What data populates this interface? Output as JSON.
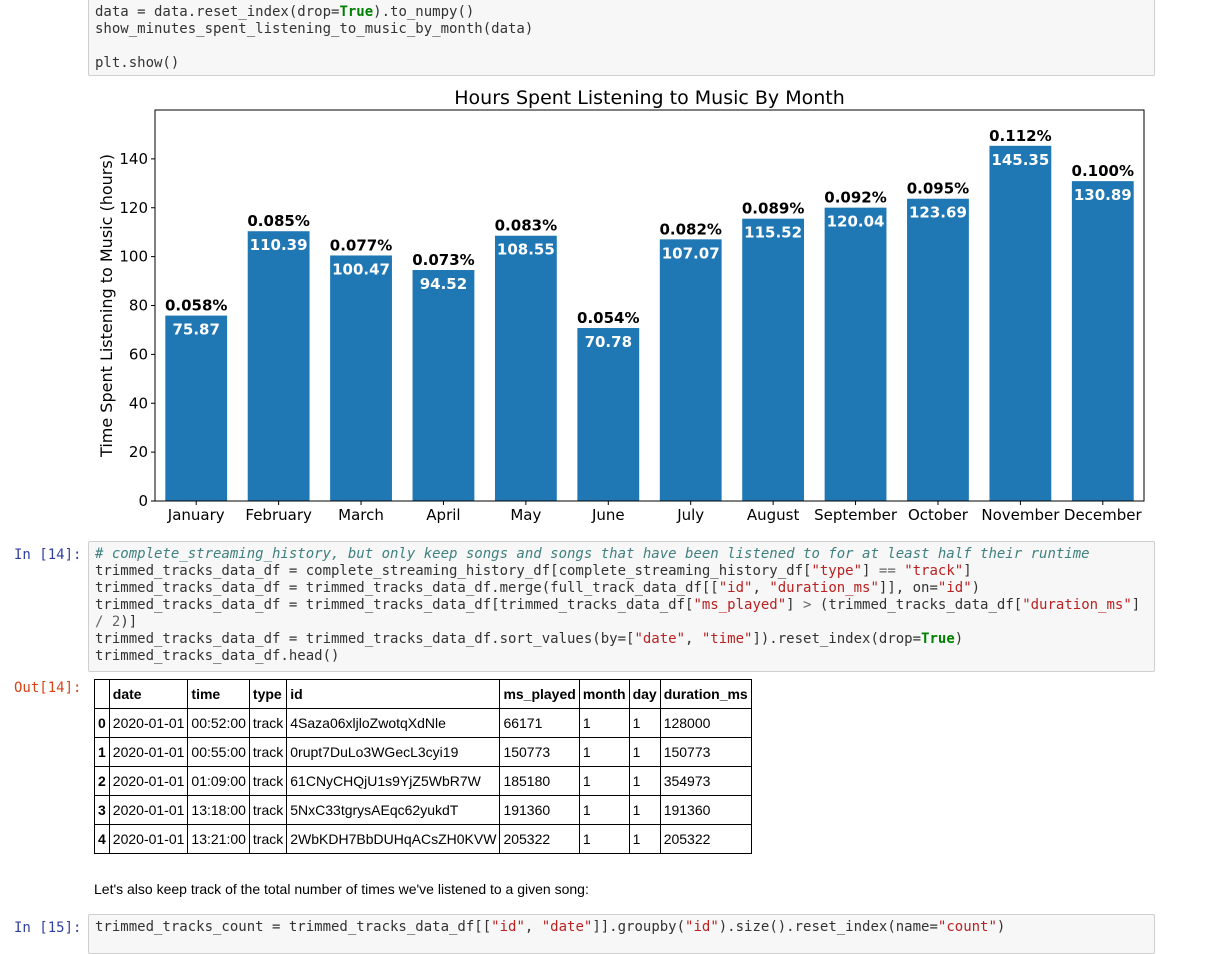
{
  "cell13": {
    "lines": [
      [
        [
          "code",
          "data = data.reset_index(drop="
        ],
        [
          "kw",
          "True"
        ],
        [
          "code",
          ").to_numpy()"
        ]
      ],
      [
        [
          "code",
          "show_minutes_spent_listening_to_music_by_month(data)"
        ]
      ],
      [
        [
          "code",
          ""
        ]
      ],
      [
        [
          "code",
          "plt.show()"
        ]
      ]
    ]
  },
  "chart_data": {
    "type": "bar",
    "title": "Hours Spent Listening to Music By Month",
    "ylabel": "Time Spent Listening to Music (hours)",
    "xlabel": "",
    "categories": [
      "January",
      "February",
      "March",
      "April",
      "May",
      "June",
      "July",
      "August",
      "September",
      "October",
      "November",
      "December"
    ],
    "values": [
      75.87,
      110.39,
      100.47,
      94.52,
      108.55,
      70.78,
      107.07,
      115.52,
      120.04,
      123.69,
      145.35,
      130.89
    ],
    "value_labels": [
      "75.87",
      "110.39",
      "100.47",
      "94.52",
      "108.55",
      "70.78",
      "107.07",
      "115.52",
      "120.04",
      "123.69",
      "145.35",
      "130.89"
    ],
    "percent_labels": [
      "0.058%",
      "0.085%",
      "0.077%",
      "0.073%",
      "0.083%",
      "0.054%",
      "0.082%",
      "0.089%",
      "0.092%",
      "0.095%",
      "0.112%",
      "0.100%"
    ],
    "ylim": [
      0,
      160
    ],
    "yticks": [
      0,
      20,
      40,
      60,
      80,
      100,
      120,
      140
    ],
    "bar_color": "#1f77b4",
    "grid": false,
    "legend": "none"
  },
  "cell14": {
    "in_prompt": "In [14]:",
    "out_prompt": "Out[14]:",
    "lines": [
      [
        [
          "cm",
          "# complete_streaming_history, but only keep songs and songs that have been listened to for at least half their runtime"
        ]
      ],
      [
        [
          "code",
          "trimmed_tracks_data_df = complete_streaming_history_df[complete_streaming_history_df["
        ],
        [
          "str",
          "\"type\""
        ],
        [
          "code",
          "] "
        ],
        [
          "op",
          "=="
        ],
        [
          "code",
          " "
        ],
        [
          "str",
          "\"track\""
        ],
        [
          "code",
          "]"
        ]
      ],
      [
        [
          "code",
          "trimmed_tracks_data_df = trimmed_tracks_data_df.merge(full_track_data_df[["
        ],
        [
          "str",
          "\"id\""
        ],
        [
          "code",
          ", "
        ],
        [
          "str",
          "\"duration_ms\""
        ],
        [
          "code",
          "]], on="
        ],
        [
          "str",
          "\"id\""
        ],
        [
          "code",
          ")"
        ]
      ],
      [
        [
          "code",
          "trimmed_tracks_data_df = trimmed_tracks_data_df[trimmed_tracks_data_df["
        ],
        [
          "str",
          "\"ms_played\""
        ],
        [
          "code",
          "] "
        ],
        [
          "op",
          ">"
        ],
        [
          "code",
          " (trimmed_tracks_data_df["
        ],
        [
          "str",
          "\"duration_ms\""
        ],
        [
          "code",
          "]"
        ]
      ],
      [
        [
          "op",
          "/"
        ],
        [
          "code",
          " "
        ],
        [
          "num",
          "2"
        ],
        [
          "code",
          ")]"
        ]
      ],
      [
        [
          "code",
          "trimmed_tracks_data_df = trimmed_tracks_data_df.sort_values(by=["
        ],
        [
          "str",
          "\"date\""
        ],
        [
          "code",
          ", "
        ],
        [
          "str",
          "\"time\""
        ],
        [
          "code",
          "]).reset_index(drop="
        ],
        [
          "kw",
          "True"
        ],
        [
          "code",
          ")"
        ]
      ],
      [
        [
          "code",
          "trimmed_tracks_data_df.head()"
        ]
      ]
    ]
  },
  "table": {
    "columns": [
      "",
      "date",
      "time",
      "type",
      "id",
      "ms_played",
      "month",
      "day",
      "duration_ms"
    ],
    "rows": [
      [
        "0",
        "2020-01-01",
        "00:52:00",
        "track",
        "4Saza06xljloZwotqXdNle",
        "66171",
        "1",
        "1",
        "128000"
      ],
      [
        "1",
        "2020-01-01",
        "00:55:00",
        "track",
        "0rupt7DuLo3WGecL3cyi19",
        "150773",
        "1",
        "1",
        "150773"
      ],
      [
        "2",
        "2020-01-01",
        "01:09:00",
        "track",
        "61CNyCHQjU1s9YjZ5WbR7W",
        "185180",
        "1",
        "1",
        "354973"
      ],
      [
        "3",
        "2020-01-01",
        "13:18:00",
        "track",
        "5NxC33tgrysAEqc62yukdT",
        "191360",
        "1",
        "1",
        "191360"
      ],
      [
        "4",
        "2020-01-01",
        "13:21:00",
        "track",
        "2WbKDH7BbDUHqACsZH0KVW",
        "205322",
        "1",
        "1",
        "205322"
      ]
    ]
  },
  "markdown": {
    "text": "Let's also keep track of the total number of times we've listened to a given song:"
  },
  "cell15": {
    "in_prompt": "In [15]:",
    "lines": [
      [
        [
          "code",
          "trimmed_tracks_count = trimmed_tracks_data_df[["
        ],
        [
          "str",
          "\"id\""
        ],
        [
          "code",
          ", "
        ],
        [
          "str",
          "\"date\""
        ],
        [
          "code",
          "]].groupby("
        ],
        [
          "str",
          "\"id\""
        ],
        [
          "code",
          ").size().reset_index(name="
        ],
        [
          "str",
          "\"count\""
        ],
        [
          "code",
          ")"
        ]
      ]
    ]
  }
}
